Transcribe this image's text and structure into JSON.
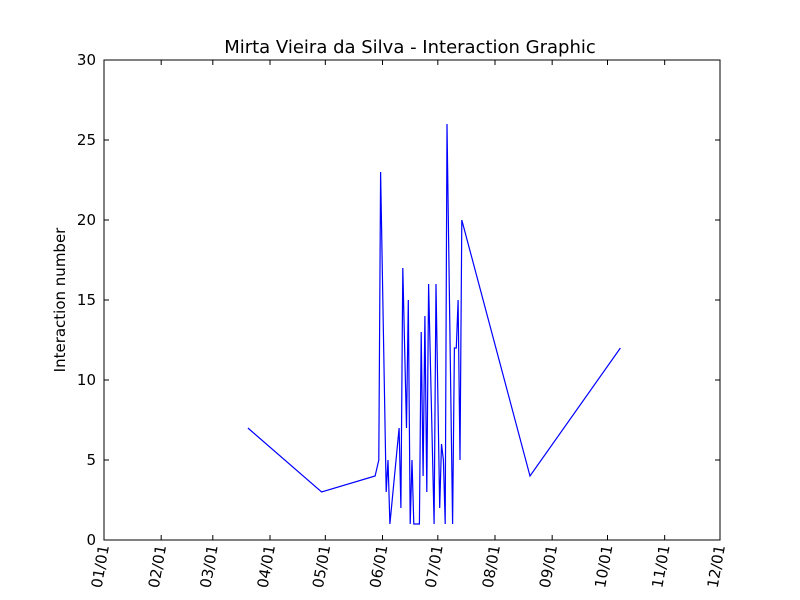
{
  "chart_data": {
    "type": "line",
    "title": "Mirta Vieira da Silva - Interaction Graphic",
    "y_label": "Interaction number",
    "x": [
      "03/20",
      "04/29",
      "05/28",
      "05/30",
      "05/31",
      "06/03",
      "06/04",
      "06/05",
      "06/10",
      "06/11",
      "06/12",
      "06/14",
      "06/15",
      "06/16",
      "06/17",
      "06/18",
      "06/21",
      "06/22",
      "06/23",
      "06/24",
      "06/25",
      "06/26",
      "06/29",
      "06/30",
      "07/02",
      "07/03",
      "07/04",
      "07/05",
      "07/06",
      "07/09",
      "07/10",
      "07/11",
      "07/12",
      "07/13",
      "07/14",
      "08/20",
      "10/08"
    ],
    "values": [
      7,
      3,
      4,
      5,
      23,
      3,
      5,
      1,
      7,
      2,
      17,
      7,
      15,
      1,
      5,
      1,
      1,
      13,
      4,
      14,
      3,
      16,
      1,
      16,
      2,
      6,
      5,
      1,
      26,
      1,
      12,
      12,
      15,
      5,
      20,
      4,
      12
    ],
    "color": "#0000ff",
    "xlim": [
      "01/01",
      "12/01"
    ],
    "xticks": [
      "01/01",
      "02/01",
      "03/01",
      "04/01",
      "05/01",
      "06/01",
      "07/01",
      "08/01",
      "09/01",
      "10/01",
      "11/01",
      "12/01"
    ],
    "ylim": [
      0,
      30
    ],
    "yticks": [
      0,
      5,
      10,
      15,
      20,
      25,
      30
    ],
    "grid": false
  }
}
